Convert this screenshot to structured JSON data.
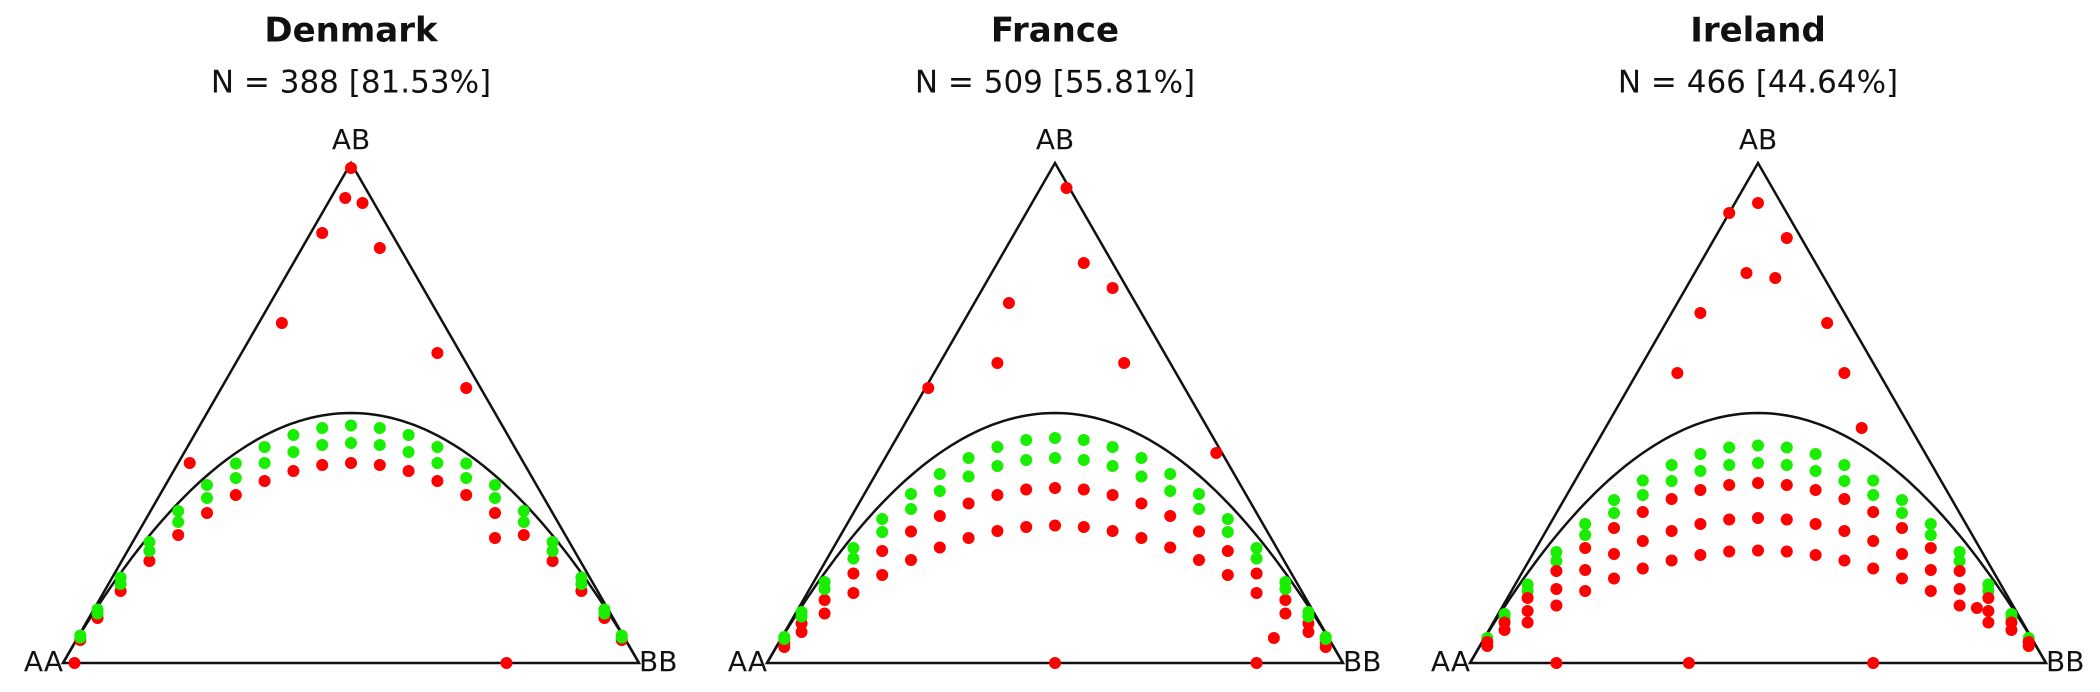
{
  "chart_data": [
    {
      "type": "ternary",
      "title": "Denmark",
      "subtitle": "N = 388 [81.53%]",
      "vertex_labels": [
        "AA",
        "AB",
        "BB"
      ],
      "xlim": [
        0,
        1
      ],
      "ylim": [
        0,
        1
      ],
      "hwe_curve": true,
      "series": [
        {
          "color": "#ff0000",
          "x": [
            0.03,
            0.06,
            0.1,
            0.15,
            0.2,
            0.25,
            0.3,
            0.35,
            0.4,
            0.45,
            0.5,
            0.55,
            0.6,
            0.65,
            0.7,
            0.75,
            0.8,
            0.85,
            0.9,
            0.94,
            0.97,
            0.5,
            0.49,
            0.52,
            0.45,
            0.55,
            0.38,
            0.65,
            0.7,
            0.22,
            0.75,
            0.77,
            0.02
          ],
          "values": [
            0.046,
            0.09,
            0.144,
            0.204,
            0.256,
            0.3,
            0.336,
            0.364,
            0.384,
            0.396,
            0.4,
            0.396,
            0.384,
            0.364,
            0.336,
            0.3,
            0.256,
            0.204,
            0.144,
            0.09,
            0.046,
            0.99,
            0.93,
            0.92,
            0.86,
            0.83,
            0.68,
            0.62,
            0.55,
            0.4,
            0.25,
            0,
            0
          ]
        },
        {
          "color": "#1aee00",
          "x": [
            0.03,
            0.06,
            0.1,
            0.15,
            0.2,
            0.25,
            0.3,
            0.35,
            0.4,
            0.45,
            0.5,
            0.55,
            0.6,
            0.65,
            0.7,
            0.75,
            0.8,
            0.85,
            0.9,
            0.94,
            0.97,
            0.03,
            0.06,
            0.1,
            0.15,
            0.2,
            0.25,
            0.3,
            0.35,
            0.4,
            0.45,
            0.5,
            0.55,
            0.6,
            0.65,
            0.7,
            0.75,
            0.8,
            0.85,
            0.9,
            0.94,
            0.97
          ],
          "values": [
            0.055,
            0.107,
            0.171,
            0.242,
            0.304,
            0.356,
            0.399,
            0.432,
            0.456,
            0.47,
            0.475,
            0.47,
            0.456,
            0.432,
            0.399,
            0.356,
            0.304,
            0.242,
            0.171,
            0.107,
            0.055,
            0.051,
            0.099,
            0.158,
            0.224,
            0.282,
            0.33,
            0.37,
            0.4,
            0.422,
            0.436,
            0.44,
            0.436,
            0.422,
            0.4,
            0.37,
            0.33,
            0.282,
            0.224,
            0.158,
            0.099,
            0.051
          ]
        }
      ]
    },
    {
      "type": "ternary",
      "title": "France",
      "subtitle": "N = 509 [55.81%]",
      "vertex_labels": [
        "AA",
        "AB",
        "BB"
      ],
      "xlim": [
        0,
        1
      ],
      "ylim": [
        0,
        1
      ],
      "hwe_curve": true,
      "series": [
        {
          "color": "#ff0000",
          "x": [
            0.03,
            0.06,
            0.1,
            0.15,
            0.2,
            0.25,
            0.3,
            0.35,
            0.4,
            0.45,
            0.5,
            0.55,
            0.6,
            0.65,
            0.7,
            0.75,
            0.8,
            0.85,
            0.9,
            0.94,
            0.97,
            0.03,
            0.06,
            0.1,
            0.15,
            0.2,
            0.25,
            0.3,
            0.35,
            0.4,
            0.45,
            0.5,
            0.55,
            0.6,
            0.65,
            0.7,
            0.75,
            0.8,
            0.85,
            0.9,
            0.94,
            0.97,
            0.52,
            0.55,
            0.6,
            0.42,
            0.4,
            0.62,
            0.28,
            0.78,
            0.5,
            0.85,
            0.88
          ],
          "values": [
            0.041,
            0.079,
            0.126,
            0.179,
            0.224,
            0.263,
            0.294,
            0.319,
            0.336,
            0.347,
            0.35,
            0.347,
            0.336,
            0.319,
            0.294,
            0.263,
            0.224,
            0.179,
            0.126,
            0.079,
            0.041,
            0.032,
            0.062,
            0.099,
            0.14,
            0.176,
            0.206,
            0.231,
            0.25,
            0.264,
            0.272,
            0.275,
            0.272,
            0.264,
            0.25,
            0.231,
            0.206,
            0.176,
            0.14,
            0.099,
            0.062,
            0.032,
            0.95,
            0.8,
            0.75,
            0.72,
            0.6,
            0.6,
            0.55,
            0.42,
            0,
            0,
            0.05
          ]
        },
        {
          "color": "#1aee00",
          "x": [
            0.03,
            0.06,
            0.1,
            0.15,
            0.2,
            0.25,
            0.3,
            0.35,
            0.4,
            0.45,
            0.5,
            0.55,
            0.6,
            0.65,
            0.7,
            0.75,
            0.8,
            0.85,
            0.9,
            0.94,
            0.97,
            0.03,
            0.06,
            0.1,
            0.15,
            0.2,
            0.25,
            0.3,
            0.35,
            0.4,
            0.45,
            0.5,
            0.55,
            0.6,
            0.65,
            0.7,
            0.75,
            0.8,
            0.85,
            0.9,
            0.94,
            0.97
          ],
          "values": [
            0.052,
            0.102,
            0.162,
            0.23,
            0.288,
            0.338,
            0.378,
            0.41,
            0.432,
            0.446,
            0.45,
            0.446,
            0.432,
            0.41,
            0.378,
            0.338,
            0.288,
            0.23,
            0.162,
            0.102,
            0.052,
            0.048,
            0.093,
            0.148,
            0.209,
            0.262,
            0.308,
            0.344,
            0.373,
            0.394,
            0.406,
            0.41,
            0.406,
            0.394,
            0.373,
            0.344,
            0.308,
            0.262,
            0.209,
            0.148,
            0.093,
            0.048
          ]
        }
      ]
    },
    {
      "type": "ternary",
      "title": "Ireland",
      "subtitle": "N = 466 [44.64%]",
      "vertex_labels": [
        "AA",
        "AB",
        "BB"
      ],
      "xlim": [
        0,
        1
      ],
      "ylim": [
        0,
        1
      ],
      "hwe_curve": true,
      "series": [
        {
          "color": "#1aee00",
          "x": [
            0.03,
            0.06,
            0.1,
            0.15,
            0.2,
            0.25,
            0.3,
            0.35,
            0.4,
            0.45,
            0.5,
            0.55,
            0.6,
            0.65,
            0.7,
            0.75,
            0.8,
            0.85,
            0.9,
            0.94,
            0.97,
            0.03,
            0.06,
            0.1,
            0.15,
            0.2,
            0.25,
            0.3,
            0.35,
            0.4,
            0.45,
            0.5,
            0.55,
            0.6,
            0.65,
            0.7,
            0.75,
            0.8,
            0.85,
            0.9,
            0.94,
            0.97
          ],
          "values": [
            0.05,
            0.098,
            0.157,
            0.222,
            0.278,
            0.326,
            0.365,
            0.396,
            0.418,
            0.431,
            0.435,
            0.431,
            0.418,
            0.396,
            0.365,
            0.326,
            0.278,
            0.222,
            0.157,
            0.098,
            0.05,
            0.046,
            0.09,
            0.144,
            0.204,
            0.256,
            0.3,
            0.336,
            0.364,
            0.384,
            0.396,
            0.4,
            0.396,
            0.384,
            0.364,
            0.336,
            0.3,
            0.256,
            0.204,
            0.144,
            0.09,
            0.046
          ]
        },
        {
          "color": "#ff0000",
          "x": [
            0.03,
            0.06,
            0.1,
            0.15,
            0.2,
            0.25,
            0.3,
            0.35,
            0.4,
            0.45,
            0.5,
            0.55,
            0.6,
            0.65,
            0.7,
            0.75,
            0.8,
            0.85,
            0.9,
            0.94,
            0.97,
            0.03,
            0.06,
            0.1,
            0.15,
            0.2,
            0.25,
            0.3,
            0.35,
            0.4,
            0.45,
            0.5,
            0.55,
            0.6,
            0.65,
            0.7,
            0.75,
            0.8,
            0.85,
            0.9,
            0.94,
            0.97,
            0.1,
            0.15,
            0.2,
            0.25,
            0.3,
            0.35,
            0.4,
            0.45,
            0.5,
            0.55,
            0.6,
            0.65,
            0.7,
            0.75,
            0.8,
            0.85,
            0.9,
            0.5,
            0.45,
            0.55,
            0.48,
            0.53,
            0.4,
            0.62,
            0.36,
            0.65,
            0.68,
            0.15,
            0.38,
            0.7,
            0.88
          ],
          "values": [
            0.042,
            0.081,
            0.13,
            0.184,
            0.23,
            0.27,
            0.302,
            0.328,
            0.346,
            0.356,
            0.36,
            0.356,
            0.346,
            0.328,
            0.302,
            0.27,
            0.23,
            0.184,
            0.13,
            0.081,
            0.042,
            0.034,
            0.066,
            0.104,
            0.148,
            0.186,
            0.218,
            0.244,
            0.264,
            0.278,
            0.287,
            0.29,
            0.287,
            0.278,
            0.264,
            0.244,
            0.218,
            0.186,
            0.148,
            0.104,
            0.066,
            0.034,
            0.081,
            0.115,
            0.144,
            0.169,
            0.189,
            0.205,
            0.216,
            0.223,
            0.225,
            0.223,
            0.216,
            0.205,
            0.189,
            0.169,
            0.144,
            0.115,
            0.081,
            0.92,
            0.9,
            0.85,
            0.78,
            0.77,
            0.7,
            0.68,
            0.58,
            0.58,
            0.47,
            0,
            0,
            0,
            0.11
          ]
        }
      ]
    }
  ]
}
